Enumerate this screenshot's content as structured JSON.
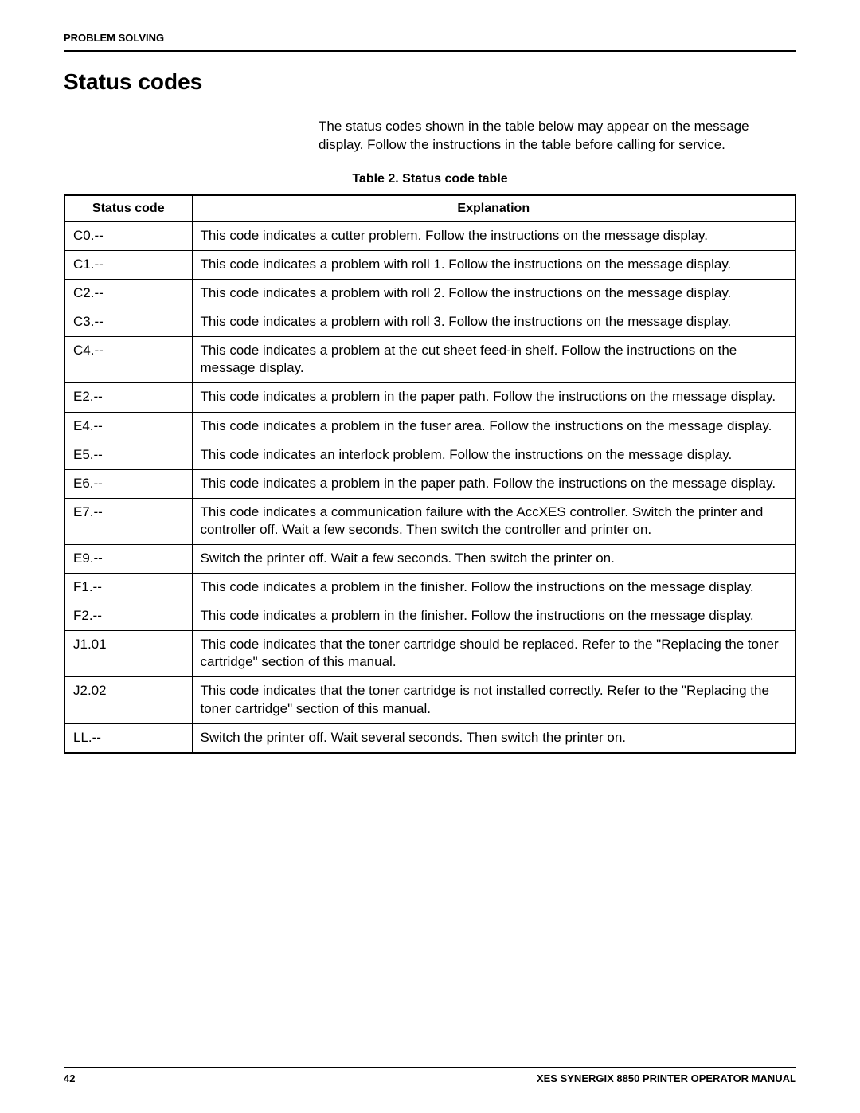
{
  "header": {
    "section_label": "PROBLEM SOLVING"
  },
  "title": "Status codes",
  "intro": "The status codes shown in the table below may appear on the message display.  Follow the instructions in the table before calling for service.",
  "table": {
    "caption": "Table 2.  Status  code table",
    "columns": [
      "Status code",
      "Explanation"
    ],
    "rows": [
      [
        "C0.--",
        "This code indicates a cutter problem.  Follow the instructions on the message display."
      ],
      [
        "C1.--",
        "This code indicates a problem with roll 1.  Follow the instructions on the message display."
      ],
      [
        "C2.--",
        "This code indicates a problem with roll 2.  Follow the instructions on the message display."
      ],
      [
        "C3.--",
        "This code indicates a problem with roll 3.  Follow the instructions on the message display."
      ],
      [
        "C4.--",
        "This code indicates a problem at the cut sheet feed-in shelf.  Follow the instructions on the message display."
      ],
      [
        "E2.--",
        "This code indicates a problem in the paper path.  Follow the instructions on the message display."
      ],
      [
        "E4.--",
        "This code indicates a problem in the fuser area.  Follow the instructions on the message display."
      ],
      [
        "E5.--",
        "This code indicates an interlock problem.  Follow the instructions on the message display."
      ],
      [
        "E6.--",
        "This code indicates a problem in the paper path.  Follow the instructions on the message display."
      ],
      [
        "E7.--",
        "This code indicates a communication failure with the AccXES controller.  Switch the printer and controller off.  Wait a few seconds.  Then switch the controller and printer on."
      ],
      [
        "E9.--",
        "Switch the printer off.  Wait a few seconds.  Then switch the printer on."
      ],
      [
        "F1.--",
        "This code indicates a problem in the finisher.  Follow the instructions on the message display."
      ],
      [
        "F2.--",
        "This code indicates a problem in the finisher.  Follow the instructions on the message display."
      ],
      [
        "J1.01",
        "This code indicates that the toner cartridge should be replaced.  Refer to the \"Replacing the toner cartridge\" section of this manual."
      ],
      [
        "J2.02",
        "This code indicates that the toner cartridge is not installed correctly.  Refer to the \"Replacing the toner cartridge\" section of this manual."
      ],
      [
        "LL.--",
        "Switch the printer off.  Wait several seconds.  Then switch the printer on."
      ]
    ]
  },
  "footer": {
    "page_number": "42",
    "manual_title": "XES SYNERGIX 8850 PRINTER OPERATOR MANUAL"
  }
}
